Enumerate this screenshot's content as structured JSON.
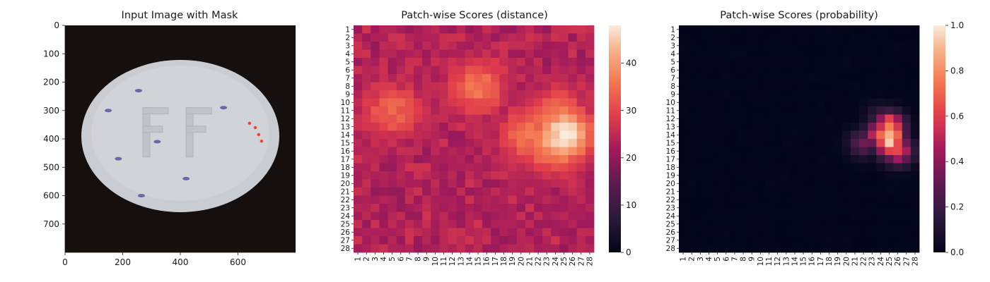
{
  "figure": {
    "panel1_title": "Input Image with Mask",
    "panel2_title": "Patch-wise Scores (distance)",
    "panel3_title": "Patch-wise Scores (probability)"
  },
  "chart_data": [
    {
      "type": "image",
      "title": "Input Image with Mask",
      "xlim": [
        0,
        800
      ],
      "ylim": [
        800,
        0
      ],
      "x_ticks": [
        0,
        200,
        400,
        600
      ],
      "y_ticks": [
        0,
        100,
        200,
        300,
        400,
        500,
        600,
        700
      ],
      "colors": {
        "background": "#150f0e",
        "pill": "#c9ccd0",
        "speck": "#5a55a0",
        "mask": "#ff3b2f"
      }
    },
    {
      "type": "heatmap",
      "title": "Patch-wise Scores (distance)",
      "rows": [
        "1",
        "2",
        "3",
        "4",
        "5",
        "6",
        "7",
        "8",
        "9",
        "10",
        "11",
        "12",
        "13",
        "14",
        "15",
        "16",
        "17",
        "18",
        "19",
        "20",
        "21",
        "22",
        "23",
        "24",
        "25",
        "26",
        "27",
        "28"
      ],
      "cols": [
        "1",
        "2",
        "3",
        "4",
        "5",
        "6",
        "7",
        "8",
        "9",
        "10",
        "11",
        "12",
        "13",
        "14",
        "15",
        "16",
        "17",
        "18",
        "19",
        "20",
        "21",
        "22",
        "23",
        "24",
        "25",
        "26",
        "27",
        "28"
      ],
      "baseline": 22,
      "hotspots": [
        {
          "row": 14,
          "col": 25,
          "value": 48
        },
        {
          "row": 13,
          "col": 24,
          "value": 40
        },
        {
          "row": 15,
          "col": 24,
          "value": 42
        },
        {
          "row": 14,
          "col": 21,
          "value": 36
        },
        {
          "row": 12,
          "col": 24,
          "value": 38
        },
        {
          "row": 8,
          "col": 15,
          "value": 36
        },
        {
          "row": 11,
          "col": 5,
          "value": 34
        }
      ],
      "colorbar": {
        "min": 0,
        "max": 48,
        "ticks": [
          0,
          10,
          20,
          30,
          40
        ]
      },
      "colormap": "rocket"
    },
    {
      "type": "heatmap",
      "title": "Patch-wise Scores (probability)",
      "rows": [
        "1",
        "2",
        "3",
        "4",
        "5",
        "6",
        "7",
        "8",
        "9",
        "10",
        "11",
        "12",
        "13",
        "14",
        "15",
        "16",
        "17",
        "18",
        "19",
        "20",
        "21",
        "22",
        "23",
        "24",
        "25",
        "26",
        "27",
        "28"
      ],
      "cols": [
        "1",
        "2",
        "3",
        "4",
        "5",
        "6",
        "7",
        "8",
        "9",
        "10",
        "11",
        "12",
        "13",
        "14",
        "15",
        "16",
        "17",
        "18",
        "19",
        "20",
        "21",
        "22",
        "23",
        "24",
        "25",
        "26",
        "27",
        "28"
      ],
      "baseline": 0,
      "hotspots": [
        {
          "row": 14,
          "col": 25,
          "value": 1.0
        },
        {
          "row": 13,
          "col": 25,
          "value": 0.9
        },
        {
          "row": 15,
          "col": 25,
          "value": 0.95
        },
        {
          "row": 14,
          "col": 24,
          "value": 0.75
        },
        {
          "row": 15,
          "col": 22,
          "value": 0.35
        },
        {
          "row": 12,
          "col": 24,
          "value": 0.25
        },
        {
          "row": 16,
          "col": 26,
          "value": 0.7
        }
      ],
      "colorbar": {
        "min": 0,
        "max": 1,
        "ticks": [
          "0.0",
          "0.2",
          "0.4",
          "0.6",
          "0.8",
          "1.0"
        ]
      },
      "colormap": "rocket"
    }
  ]
}
